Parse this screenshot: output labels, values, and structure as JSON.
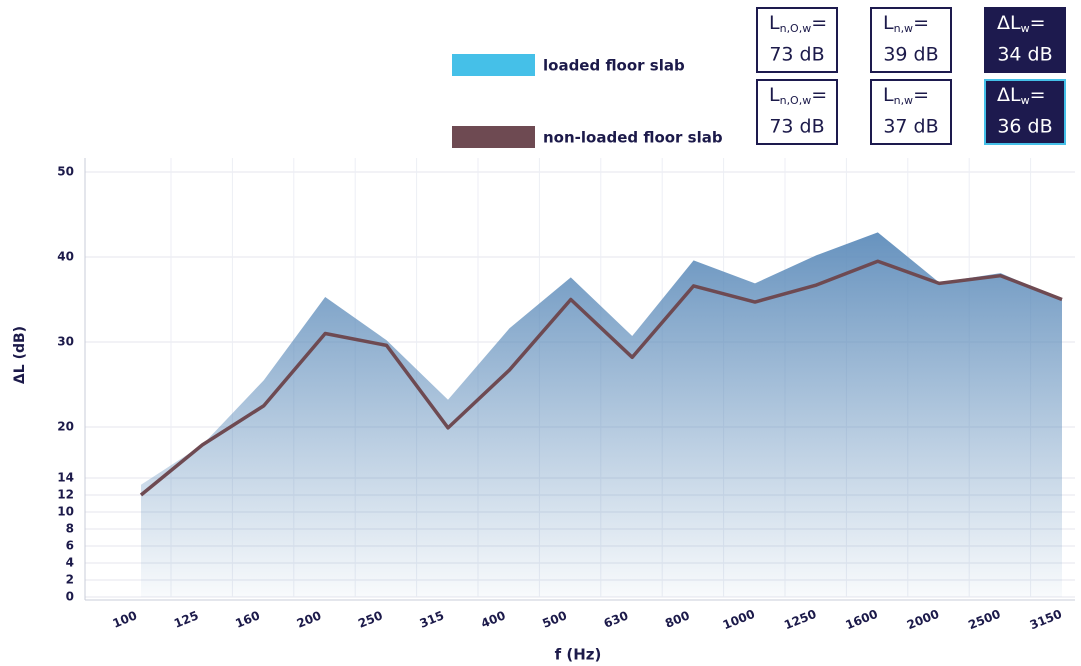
{
  "summary": [
    [
      {
        "symbol": "L",
        "subscript": "n,O,w",
        "sign": "=",
        "value": "73 dB",
        "dark": false
      },
      {
        "symbol": "L",
        "subscript": "n,w",
        "sign": "=",
        "value": "39 dB",
        "dark": false
      },
      {
        "symbol": "ΔL",
        "subscript": "w",
        "sign": "=",
        "value": "34 dB",
        "dark": true
      }
    ],
    [
      {
        "symbol": "L",
        "subscript": "n,O,w",
        "sign": "=",
        "value": "73 dB",
        "dark": false
      },
      {
        "symbol": "L",
        "subscript": "n,w",
        "sign": "=",
        "value": "37 dB",
        "dark": false
      },
      {
        "symbol": "ΔL",
        "subscript": "w",
        "sign": "=",
        "value": "36 dB",
        "dark": true
      }
    ]
  ],
  "chart_data": {
    "type": "line",
    "x_label": "f (Hz)",
    "y_label": "ΔL (dB)",
    "categories": [
      "100",
      "125",
      "160",
      "200",
      "250",
      "315",
      "400",
      "500",
      "630",
      "800",
      "1000",
      "1250",
      "1600",
      "2000",
      "2500",
      "3150"
    ],
    "series": [
      {
        "name": "loaded floor slab",
        "color": "#45c0e8",
        "fill": "#5f8dbb",
        "kind": "area",
        "values": [
          13.2,
          17.9,
          25.5,
          35.3,
          30.2,
          23.2,
          31.6,
          37.6,
          30.7,
          39.6,
          36.9,
          40.2,
          42.9,
          37.0,
          38.1,
          35.0
        ]
      },
      {
        "name": "non-loaded floor slab",
        "color": "#6e4a52",
        "kind": "line",
        "values": [
          12.0,
          17.9,
          22.5,
          31.0,
          29.6,
          19.9,
          26.7,
          35.0,
          28.2,
          36.6,
          34.7,
          36.7,
          39.5,
          36.9,
          37.8,
          35.0
        ]
      }
    ],
    "ylim": [
      0,
      50
    ],
    "yticks": [
      0,
      2,
      4,
      6,
      8,
      10,
      12,
      14,
      20,
      30,
      40,
      50
    ],
    "grid": true
  }
}
